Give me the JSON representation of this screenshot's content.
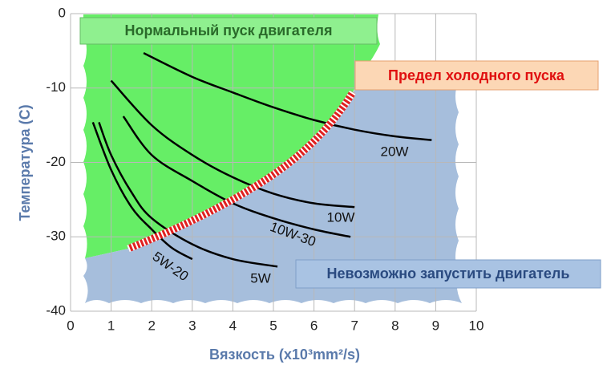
{
  "chart_data": {
    "type": "line",
    "y_label": "Температура (C)",
    "x_label": "Вязкость (x10³mm²/s)",
    "annotations": [
      "Нормальный пуск двигателя",
      "Предел холодного пуска",
      "Невозможно запустить двигатель"
    ],
    "xlim": [
      0,
      10
    ],
    "xticks": [
      0,
      1,
      2,
      3,
      4,
      5,
      6,
      7,
      8,
      9,
      10
    ],
    "ylim": [
      -40,
      0
    ],
    "yticks": [
      0,
      -10,
      -20,
      -30,
      -40
    ],
    "grid": true,
    "series": [
      {
        "name": "20W",
        "color": "#000000",
        "x": [
          1.8,
          3,
          4,
          5,
          6,
          7,
          8,
          8.9
        ],
        "values": [
          -5.3,
          -8.5,
          -10.6,
          -12.6,
          -14.3,
          -15.6,
          -16.5,
          -17
        ]
      },
      {
        "name": "10W",
        "color": "#000000",
        "x": [
          1,
          2,
          3,
          4,
          5,
          6,
          7
        ],
        "values": [
          -9,
          -15,
          -19,
          -22,
          -24.2,
          -25.5,
          -26
        ]
      },
      {
        "name": "10W-30",
        "color": "#000000",
        "x": [
          1.3,
          2,
          3,
          4,
          5,
          6,
          6.9
        ],
        "values": [
          -13.8,
          -19,
          -22.5,
          -25.5,
          -27.5,
          -29,
          -30
        ]
      },
      {
        "name": "5W",
        "color": "#000000",
        "x": [
          0.7,
          1,
          1.5,
          2,
          3,
          4,
          5.1
        ],
        "values": [
          -14.6,
          -19,
          -24,
          -27.5,
          -31,
          -33,
          -34
        ]
      },
      {
        "name": "5W-20",
        "color": "#000000",
        "x": [
          0.55,
          1,
          1.5,
          2,
          2.5,
          3
        ],
        "values": [
          -14.6,
          -21,
          -26,
          -29,
          -31.5,
          -33
        ]
      }
    ]
  }
}
